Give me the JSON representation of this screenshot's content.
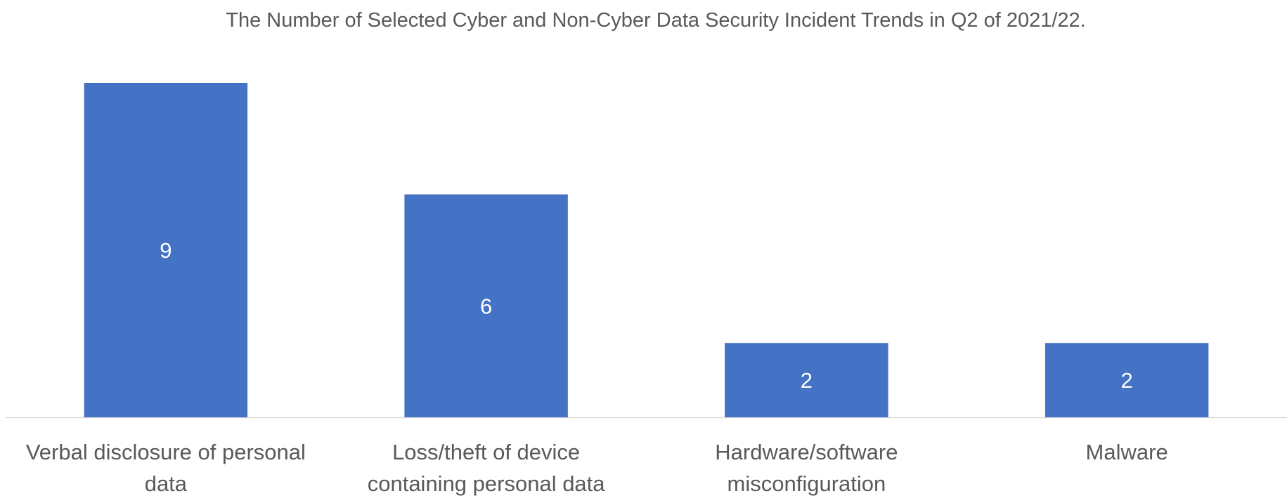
{
  "chart_data": {
    "type": "bar",
    "title": "The Number of Selected Cyber and Non-Cyber Data Security Incident Trends in Q2 of 2021/22.",
    "xlabel": "",
    "ylabel": "",
    "categories": [
      [
        "Verbal disclosure of personal",
        "data"
      ],
      [
        "Loss/theft of device",
        "containing personal data"
      ],
      [
        "Hardware/software",
        "misconfiguration"
      ],
      [
        "Malware"
      ]
    ],
    "values": [
      9,
      6,
      2,
      2
    ],
    "ylim": [
      0,
      9
    ],
    "grid": false,
    "legend": "none",
    "data_labels": true,
    "colors": {
      "bar": "#4472C4",
      "axis": "#D9D9D9",
      "text": "#595959",
      "data_label": "#FFFFFF"
    }
  }
}
